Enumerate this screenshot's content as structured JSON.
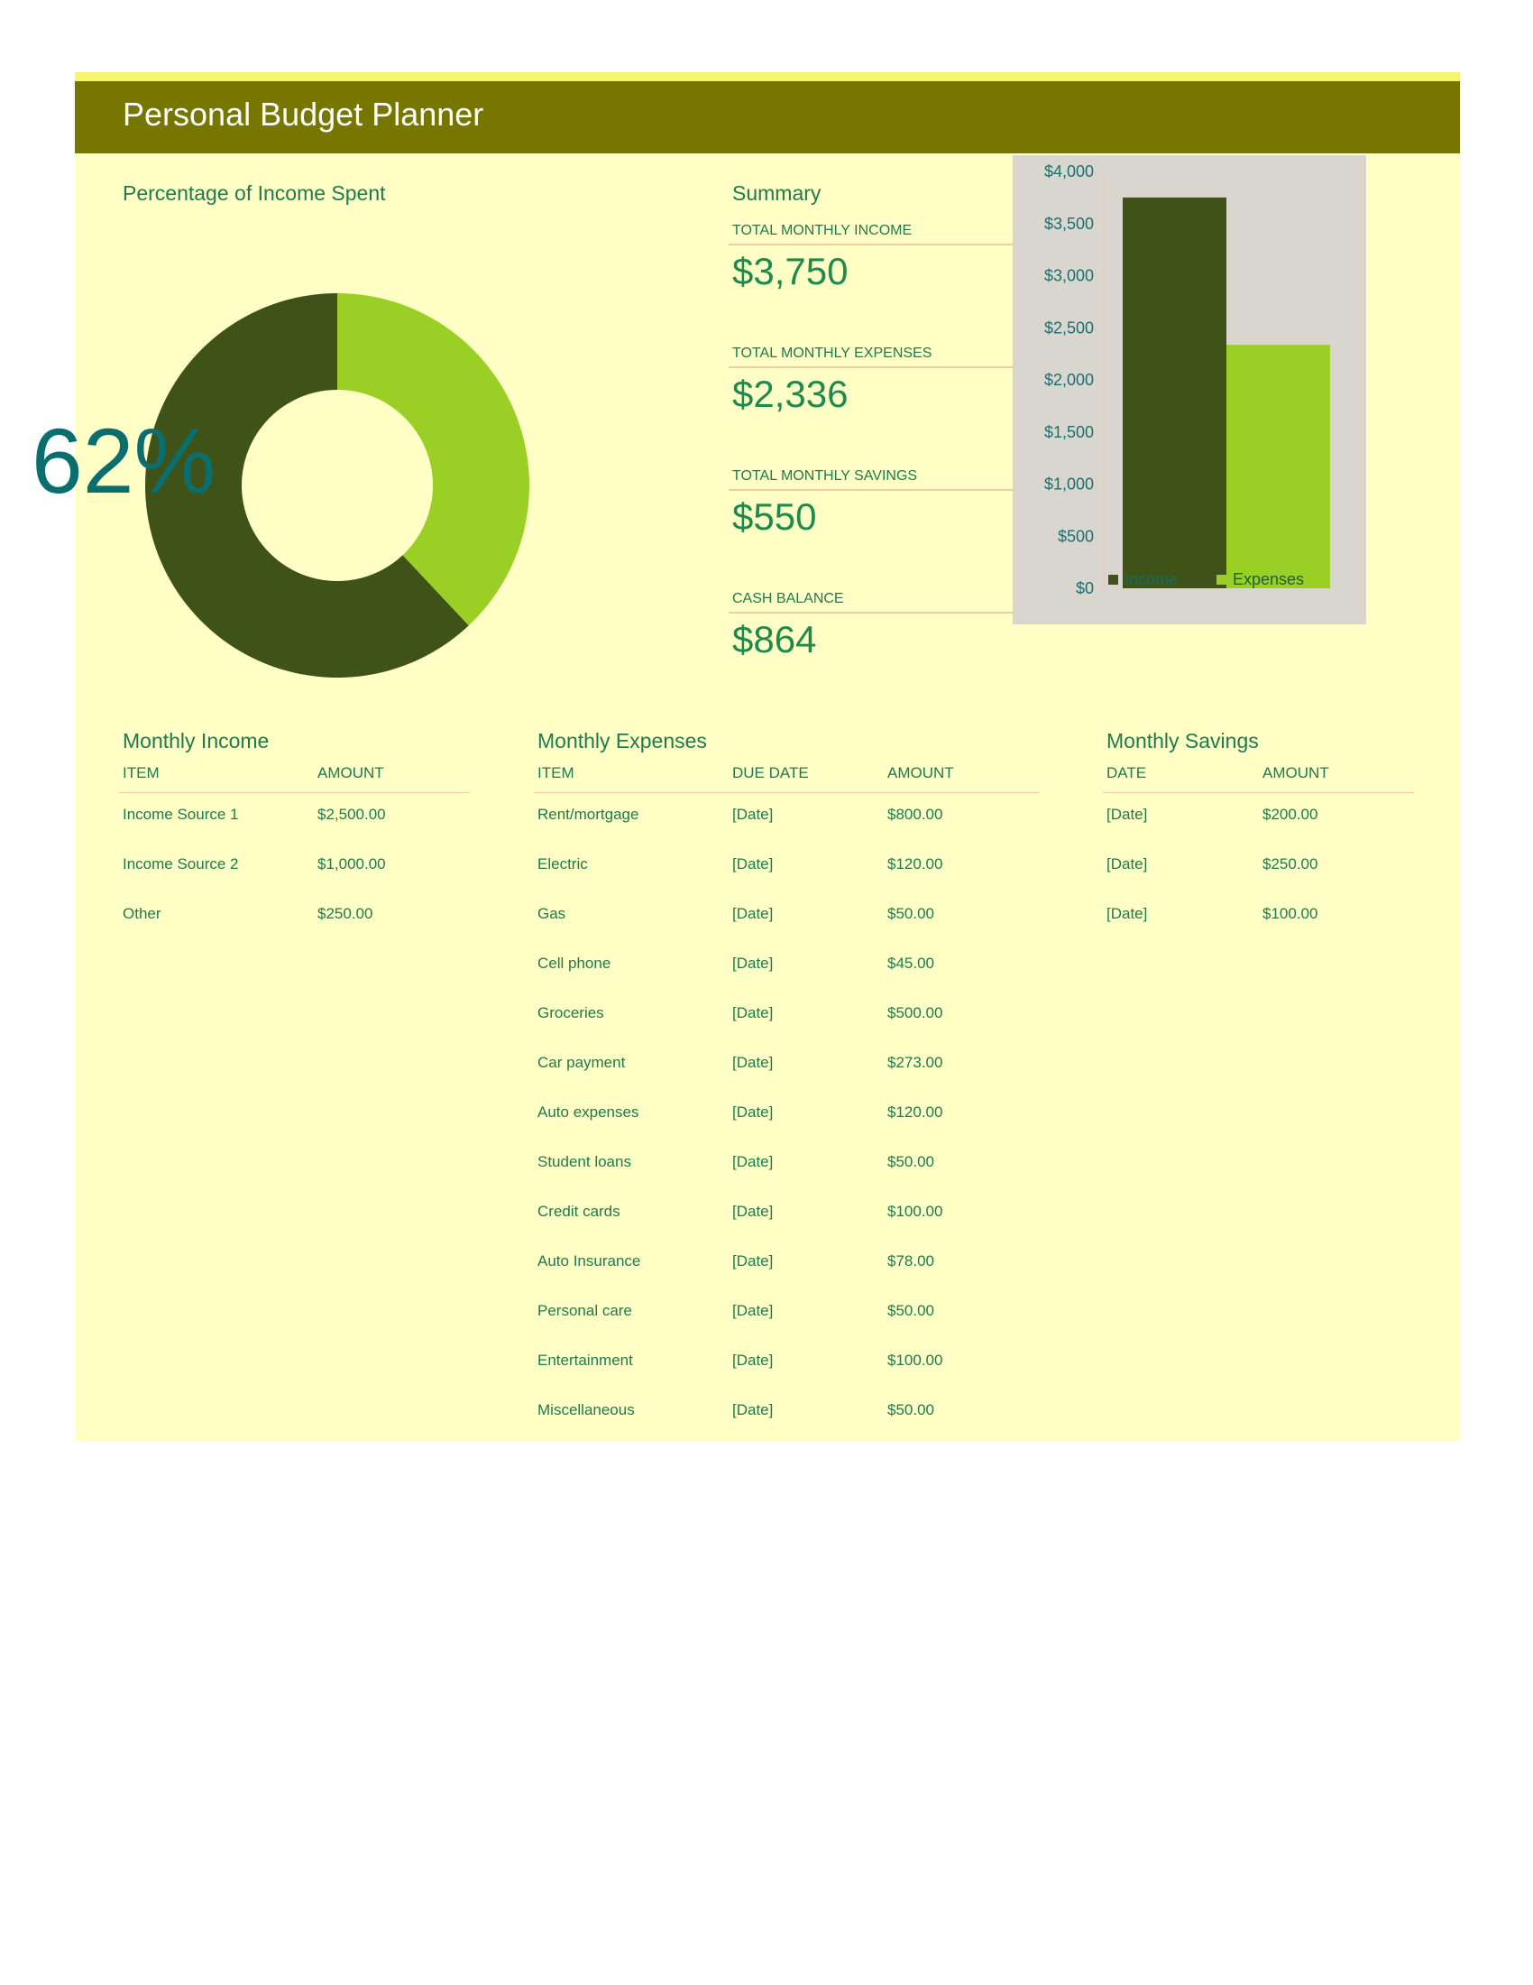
{
  "header": {
    "title": "Personal Budget Planner"
  },
  "donut": {
    "title": "Percentage of Income Spent",
    "percent_label": "62%",
    "spent_fraction": 0.62,
    "colors": {
      "spent": "#3f5318",
      "remaining": "#9ad025"
    }
  },
  "summary": {
    "title": "Summary",
    "items": [
      {
        "label": "TOTAL MONTHLY INCOME",
        "value": "$3,750"
      },
      {
        "label": "TOTAL MONTHLY EXPENSES",
        "value": "$2,336"
      },
      {
        "label": "TOTAL MONTHLY SAVINGS",
        "value": "$550"
      },
      {
        "label": "CASH BALANCE",
        "value": "$864"
      }
    ]
  },
  "chart_data": {
    "type": "bar",
    "categories": [
      "Income",
      "Expenses"
    ],
    "values": [
      3750,
      2336
    ],
    "colors": [
      "#3f5318",
      "#9ad025"
    ],
    "ylim": [
      0,
      4000
    ],
    "yticks": [
      "$0",
      "$500",
      "$1,000",
      "$1,500",
      "$2,000",
      "$2,500",
      "$3,000",
      "$3,500",
      "$4,000"
    ],
    "legend": [
      "Income",
      "Expenses"
    ],
    "legend_position": "bottom"
  },
  "income": {
    "title": "Monthly Income",
    "headers": [
      "ITEM",
      "AMOUNT"
    ],
    "rows": [
      [
        "Income Source 1",
        "$2,500.00"
      ],
      [
        "Income Source 2",
        "$1,000.00"
      ],
      [
        "Other",
        "$250.00"
      ]
    ]
  },
  "expenses": {
    "title": "Monthly Expenses",
    "headers": [
      "ITEM",
      "DUE DATE",
      "AMOUNT"
    ],
    "rows": [
      [
        "Rent/mortgage",
        "[Date]",
        "$800.00"
      ],
      [
        "Electric",
        "[Date]",
        "$120.00"
      ],
      [
        "Gas",
        "[Date]",
        "$50.00"
      ],
      [
        "Cell phone",
        "[Date]",
        "$45.00"
      ],
      [
        "Groceries",
        "[Date]",
        "$500.00"
      ],
      [
        "Car payment",
        "[Date]",
        "$273.00"
      ],
      [
        "Auto expenses",
        "[Date]",
        "$120.00"
      ],
      [
        "Student loans",
        "[Date]",
        "$50.00"
      ],
      [
        "Credit cards",
        "[Date]",
        "$100.00"
      ],
      [
        "Auto Insurance",
        "[Date]",
        "$78.00"
      ],
      [
        "Personal care",
        "[Date]",
        "$50.00"
      ],
      [
        "Entertainment",
        "[Date]",
        "$100.00"
      ],
      [
        "Miscellaneous",
        "[Date]",
        "$50.00"
      ]
    ]
  },
  "savings": {
    "title": "Monthly Savings",
    "headers": [
      "DATE",
      "AMOUNT"
    ],
    "rows": [
      [
        "[Date]",
        "$200.00"
      ],
      [
        "[Date]",
        "$250.00"
      ],
      [
        "[Date]",
        "$100.00"
      ]
    ]
  }
}
